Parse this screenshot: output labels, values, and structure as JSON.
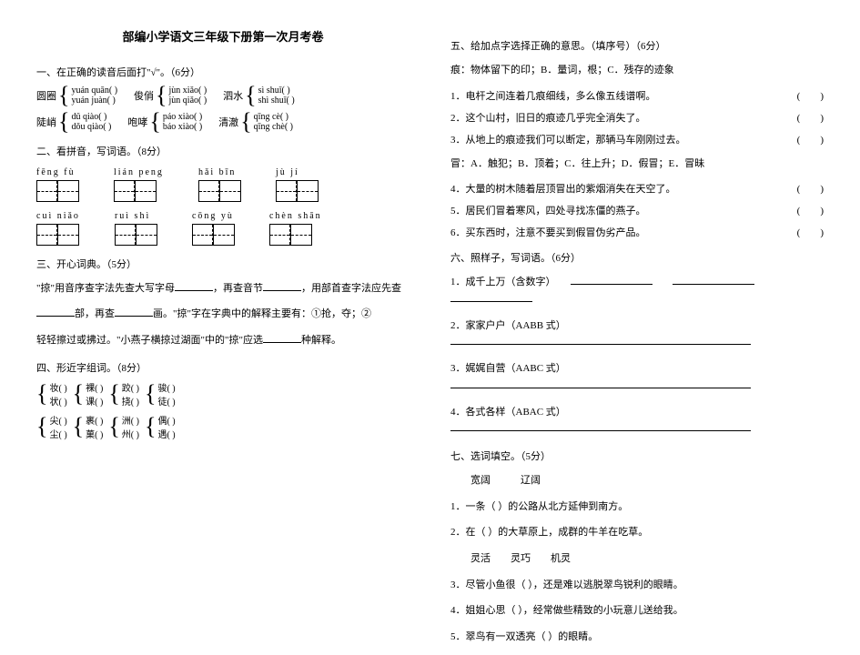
{
  "title": "部编小学语文三年级下册第一次月考卷",
  "left": {
    "s1": {
      "heading": "一、在正确的读音后面打\"√\"。（6分）",
      "groups1_labels": [
        "圆圈",
        "俊俏",
        "泗水"
      ],
      "groups1": [
        [
          "yuán  quān(        )",
          "yuán  juàn(        )"
        ],
        [
          "jùn  xiǎo(        )",
          "jùn  qiǎo(        )"
        ],
        [
          "sì  shuǐ(        )",
          "shì  shuǐ(        )"
        ]
      ],
      "groups2_labels": [
        "陡峭",
        "咆哮",
        "清澈"
      ],
      "groups2": [
        [
          "dǔ  qiào(        )",
          "dǒu  qiào(        )"
        ],
        [
          "páo  xiào(        )",
          "báo  xiào(        )"
        ],
        [
          "qīng  cè(        )",
          "qīng  chè(        )"
        ]
      ]
    },
    "s2": {
      "heading": "二、看拼音，写词语。（8分）",
      "row1": [
        "fēng  fù",
        "lián  peng",
        "hǎi  bīn",
        "jù  jí"
      ],
      "row2": [
        "cuì  niǎo",
        "ruì  shì",
        "cōng  yù",
        "chèn  shān"
      ]
    },
    "s3": {
      "heading": "三、开心词典。（5分）",
      "text1_pre": "\"掠\"用音序查字法先查大写字母",
      "text1_mid": "，再查音节",
      "text1_post": "，用部首查字法应先查",
      "text2_pre": "部，再查",
      "text2_mid": "画。\"掠\"字在字典中的解释主要有：①抢，夺；②",
      "text3_pre": "轻轻擦过或拂过。\"小燕子横掠过湖面\"中的\"掠\"应选",
      "text3_post": "种解释。"
    },
    "s4": {
      "heading": "四、形近字组词。（8分）",
      "rows": [
        [
          [
            "妆(          )",
            "状(          )"
          ],
          [
            "裸(          )",
            "课(          )"
          ],
          [
            "跤(          )",
            "挠(          )"
          ],
          [
            "骏(          )",
            "徒(          )"
          ]
        ],
        [
          [
            "尖(          )",
            "尘(          )"
          ],
          [
            "裹(          )",
            "菓(          )"
          ],
          [
            "洲(          )",
            "州(          )"
          ],
          [
            "偶(          )",
            "遇(          )"
          ]
        ]
      ]
    }
  },
  "right": {
    "s5": {
      "heading": "五、给加点字选择正确的意思。（填序号）（6分）",
      "hen_pre": "痕：物体留下的印；B．量词，根；C．残存的迹象",
      "items": [
        "1．电杆之间连着几痕细线，多么像五线谱啊。",
        "2．这个山村，旧日的痕迹几乎完全消失了。",
        "3．从地上的痕迹我们可以断定，那辆马车刚刚过去。"
      ],
      "mao_pre": "冒：A．触犯；B．顶着；C．往上升；D．假冒；E．冒昧",
      "items2": [
        "4．大量的树木随着层顶冒出的紫烟消失在天空了。",
        "5．居民们冒着寒风，四处寻找冻僵的燕子。",
        "6．买东西时，注意不要买到假冒伪劣产品。"
      ]
    },
    "s6": {
      "heading": "六、照样子，写词语。（6分）",
      "items": [
        "1．成千上万（含数字）",
        "2．家家户户（AABB 式）",
        "3．娓娓自营（AABC 式）",
        "4．各式各样（ABAC 式）"
      ]
    },
    "s7": {
      "heading": "七、选词填空。（5分）",
      "group1": [
        "宽阔",
        "辽阔"
      ],
      "items1": [
        "1．一条（        ）的公路从北方延伸到南方。",
        "2．在（        ）的大草原上，成群的牛羊在吃草。"
      ],
      "group2": [
        "灵活",
        "灵巧",
        "机灵"
      ],
      "items2": [
        "3．尽管小鱼很（      ），还是难以逃脱翠鸟锐利的眼睛。",
        "4．姐姐心思（      ），经常做些精致的小玩意儿送给我。",
        "5．翠鸟有一双透亮（      ）的眼睛。"
      ]
    }
  }
}
